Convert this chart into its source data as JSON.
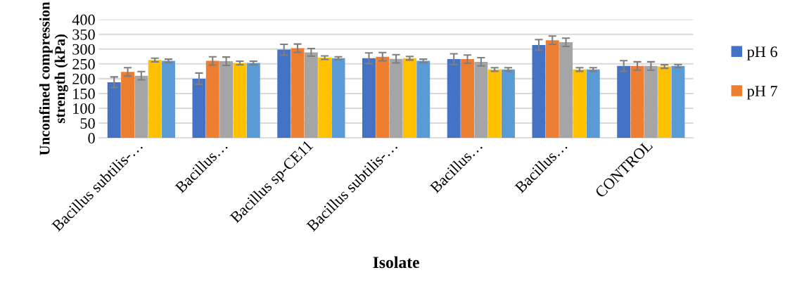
{
  "chart_data": {
    "type": "bar",
    "xlabel": "Isolate",
    "ylabel": "Unconfined compression\nstrength (kPa)",
    "categories": [
      "Bacillus subtilis-…",
      "Bacillus…",
      "Bacillus sp-CE11",
      "Bacillus subtilis-…",
      "Bacillus…",
      "Bacillus…",
      "CONTROL"
    ],
    "series": [
      {
        "name": "pH 6",
        "color": "#4472c4",
        "values": [
          188,
          200,
          298,
          269,
          266,
          314,
          243
        ],
        "errors": [
          18,
          19,
          18,
          18,
          18,
          18,
          18
        ]
      },
      {
        "name": "pH 7",
        "color": "#ed7d31",
        "values": [
          223,
          260,
          303,
          274,
          266,
          330,
          243
        ],
        "errors": [
          14,
          14,
          14,
          14,
          14,
          14,
          14
        ]
      },
      {
        "color": "#a5a5a5",
        "values": [
          210,
          259,
          289,
          267,
          257,
          323,
          243
        ],
        "errors": [
          14,
          14,
          13,
          14,
          14,
          14,
          14
        ]
      },
      {
        "color": "#ffc000",
        "values": [
          263,
          253,
          271,
          269,
          231,
          231,
          241
        ],
        "errors": [
          6,
          6,
          6,
          6,
          6,
          6,
          6
        ]
      },
      {
        "color": "#5b9bd5",
        "values": [
          260,
          253,
          269,
          260,
          231,
          231,
          243
        ],
        "errors": [
          6,
          6,
          5,
          6,
          6,
          6,
          5
        ]
      }
    ],
    "ylim": [
      0,
      400
    ],
    "yticks": [
      0,
      50,
      100,
      150,
      200,
      250,
      300,
      350,
      400
    ],
    "grid": "y",
    "legend": "right"
  }
}
